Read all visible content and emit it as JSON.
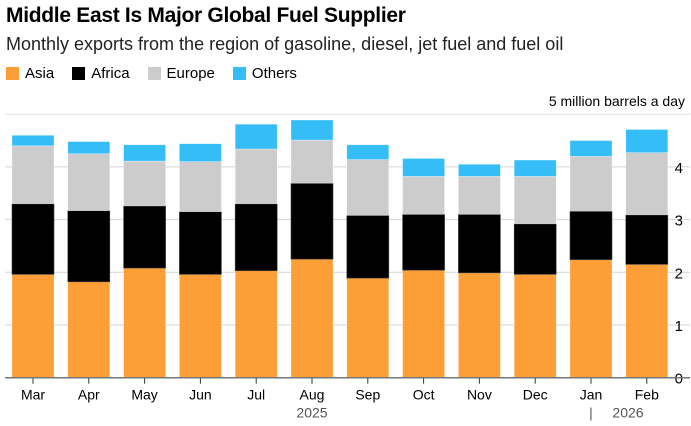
{
  "title": "Middle East Is Major Global Fuel Supplier",
  "subtitle": "Monthly exports from the region of gasoline, diesel, jet fuel and fuel oil",
  "chart_data": {
    "type": "bar",
    "stacked": true,
    "title": "Middle East Is Major Global Fuel Supplier",
    "subtitle": "Monthly exports from the region of gasoline, diesel, jet fuel and fuel oil",
    "unit_label": "5 million barrels a day",
    "categories": [
      "Mar",
      "Apr",
      "May",
      "Jun",
      "Jul",
      "Aug",
      "Sep",
      "Oct",
      "Nov",
      "Dec",
      "Jan",
      "Feb"
    ],
    "year_labels": [
      "2025",
      "|",
      "2026"
    ],
    "ylim": [
      0,
      5
    ],
    "yticks": [
      "0",
      "1",
      "2",
      "3",
      "4"
    ],
    "grid": true,
    "legend_position": "top-left",
    "series": [
      {
        "name": "Asia",
        "color": "#fd9e37",
        "values": [
          1.96,
          1.82,
          2.08,
          1.96,
          2.03,
          2.25,
          1.89,
          2.04,
          1.99,
          1.96,
          2.24,
          2.15
        ]
      },
      {
        "name": "Africa",
        "color": "#000000",
        "values": [
          1.34,
          1.35,
          1.18,
          1.19,
          1.27,
          1.44,
          1.19,
          1.06,
          1.11,
          0.96,
          0.92,
          0.94
        ]
      },
      {
        "name": "Europe",
        "color": "#cccccc",
        "values": [
          1.1,
          1.08,
          0.85,
          0.95,
          1.04,
          0.82,
          1.06,
          0.72,
          0.72,
          0.9,
          1.04,
          1.18
        ]
      },
      {
        "name": "Others",
        "color": "#35bdf8",
        "values": [
          0.2,
          0.23,
          0.31,
          0.34,
          0.47,
          0.38,
          0.28,
          0.34,
          0.23,
          0.31,
          0.3,
          0.44
        ]
      }
    ]
  }
}
